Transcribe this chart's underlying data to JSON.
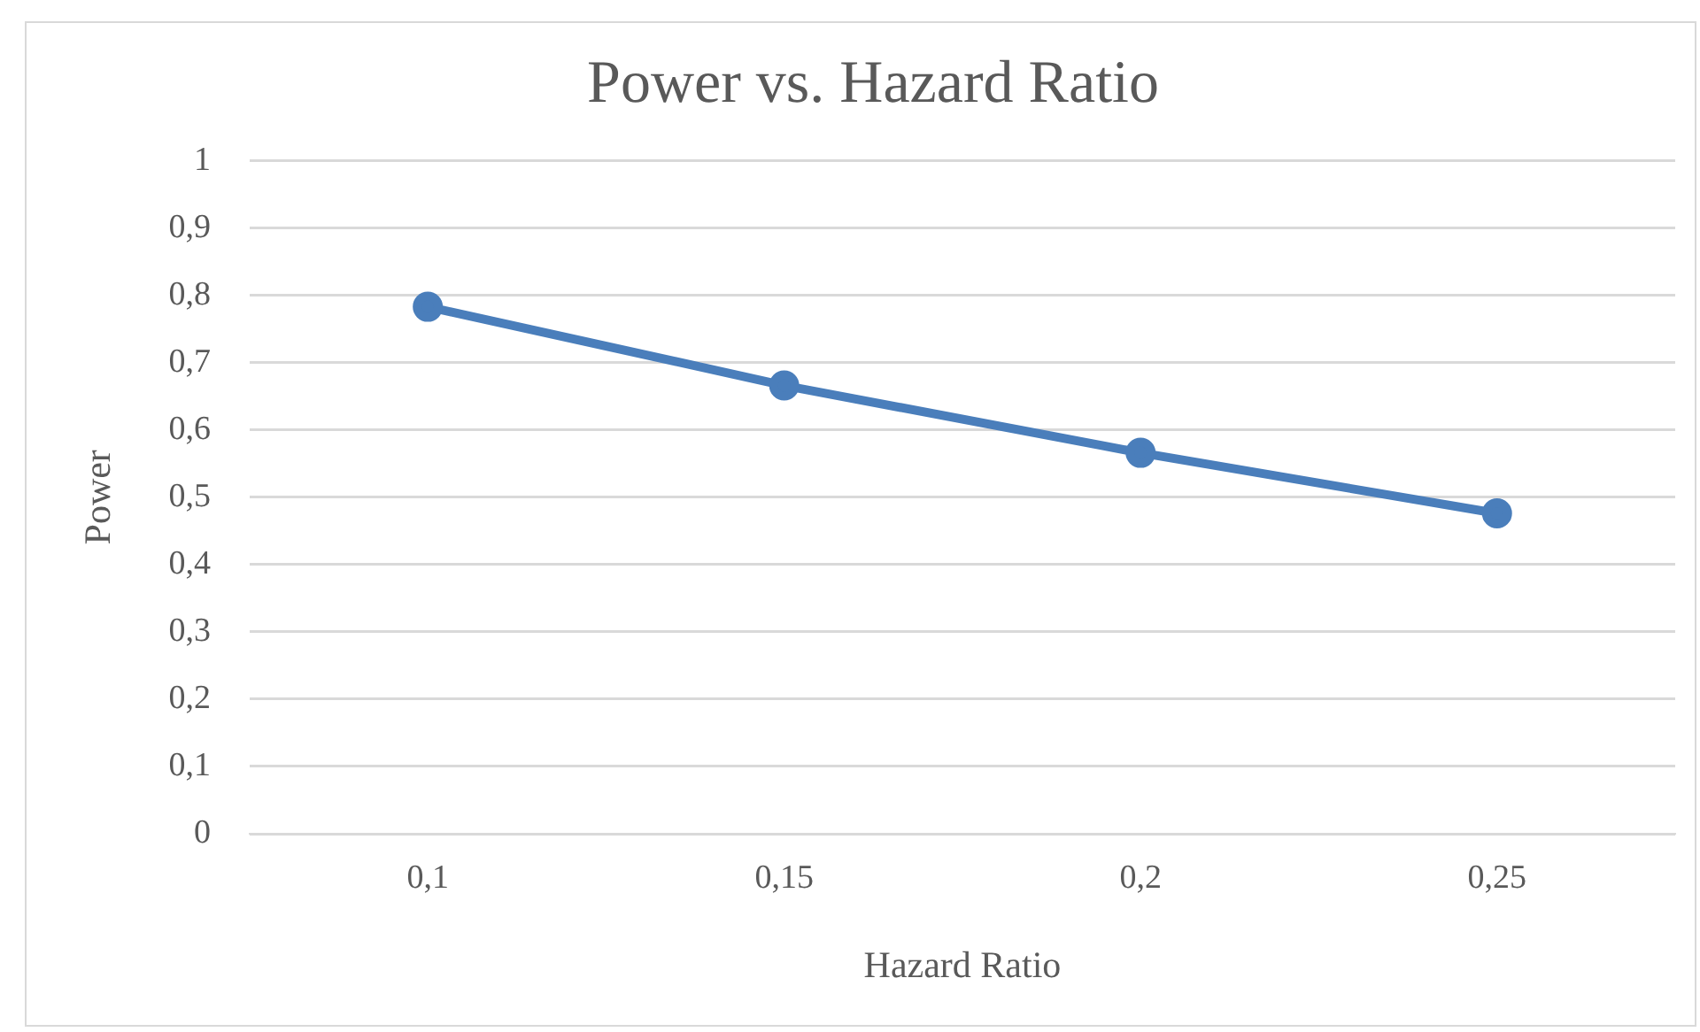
{
  "chart_data": {
    "type": "line",
    "title": "Power vs. Hazard Ratio",
    "xlabel": "Hazard Ratio",
    "ylabel": "Power",
    "categories": [
      "0,1",
      "0,15",
      "0,2",
      "0,25"
    ],
    "series": [
      {
        "color": "#4a7ebb",
        "values": [
          0.783,
          0.666,
          0.566,
          0.476
        ]
      }
    ],
    "ylim": [
      0,
      1
    ],
    "yticks": [
      0,
      {
        "value": 0.1,
        "label": "0,1"
      },
      {
        "value": 0.2,
        "label": "0,2"
      },
      {
        "value": 0.3,
        "label": "0,3"
      },
      {
        "value": 0.4,
        "label": "0,4"
      },
      {
        "value": 0.5,
        "label": "0,5"
      },
      {
        "value": 0.6,
        "label": "0,6"
      },
      {
        "value": 0.7,
        "label": "0,7"
      },
      {
        "value": 0.8,
        "label": "0,8"
      },
      {
        "value": 0.9,
        "label": "0,9"
      },
      1
    ],
    "grid": "y",
    "legend": false,
    "marker": "circle",
    "line_style": "solid"
  }
}
